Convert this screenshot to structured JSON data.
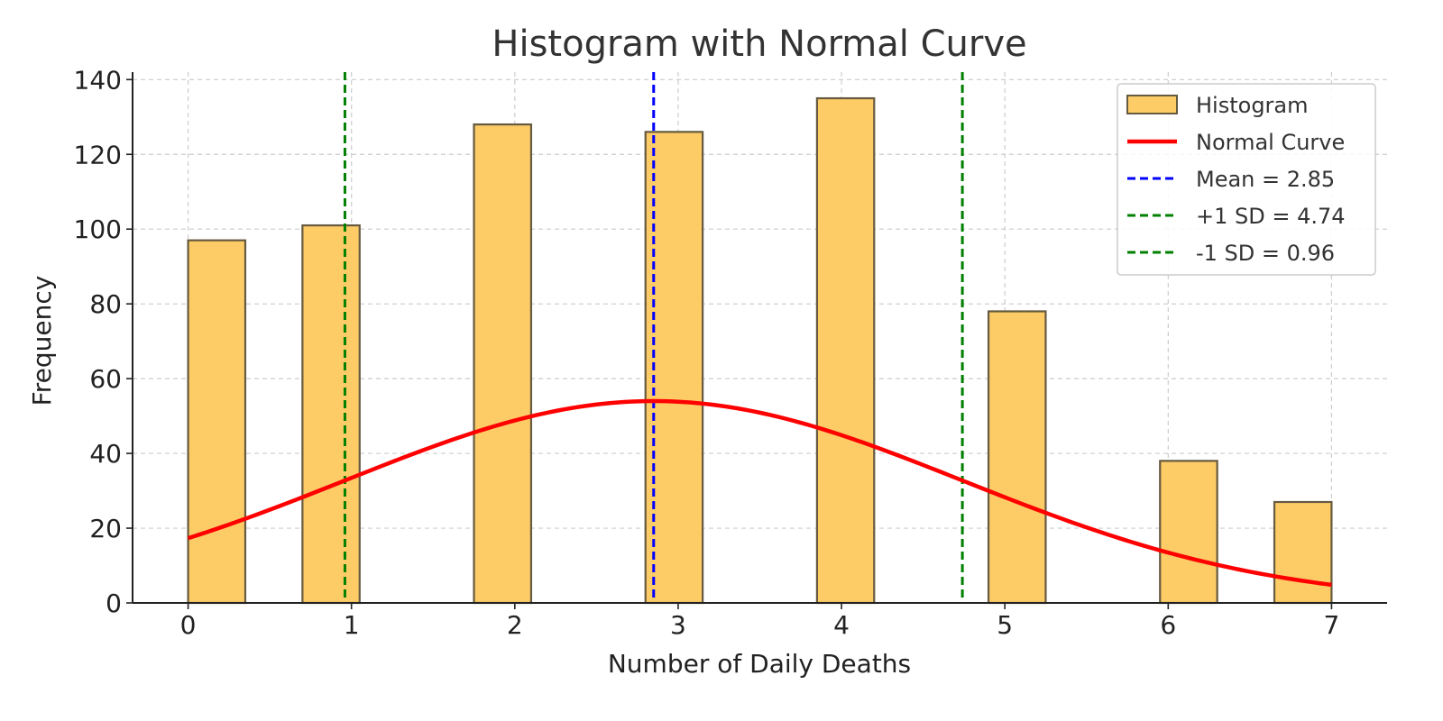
{
  "chart_data": {
    "type": "bar",
    "title": "Histogram with Normal Curve",
    "xlabel": "Number of Daily Deaths",
    "ylabel": "Frequency",
    "xlim": [
      -0.34,
      7.34
    ],
    "ylim": [
      0,
      142
    ],
    "x_ticks": [
      0,
      1,
      2,
      3,
      4,
      5,
      6,
      7
    ],
    "y_ticks": [
      0,
      20,
      40,
      60,
      80,
      100,
      120,
      140
    ],
    "grid": true,
    "legend_position": "top-right",
    "histogram": {
      "name": "Histogram",
      "color": "#fdcc66",
      "edge_color": "#665a40",
      "bin_width": 0.35,
      "bars": [
        {
          "x_start": 0.0,
          "value": 97
        },
        {
          "x_start": 0.7,
          "value": 101
        },
        {
          "x_start": 1.75,
          "value": 128
        },
        {
          "x_start": 2.8,
          "value": 126
        },
        {
          "x_start": 3.85,
          "value": 135
        },
        {
          "x_start": 4.9,
          "value": 78
        },
        {
          "x_start": 5.95,
          "value": 38
        },
        {
          "x_start": 6.65,
          "value": 27
        }
      ]
    },
    "normal_curve": {
      "name": "Normal Curve",
      "color": "#ff0000",
      "mean": 2.85,
      "sd": 1.89,
      "peak": 54,
      "x_range": [
        0,
        7
      ]
    },
    "reference_lines": [
      {
        "name": "Mean = 2.85",
        "x": 2.85,
        "color": "#0000ff"
      },
      {
        "name": "+1 SD = 4.74",
        "x": 4.74,
        "color": "#008000"
      },
      {
        "name": "-1 SD = 0.96",
        "x": 0.96,
        "color": "#008000"
      }
    ]
  }
}
